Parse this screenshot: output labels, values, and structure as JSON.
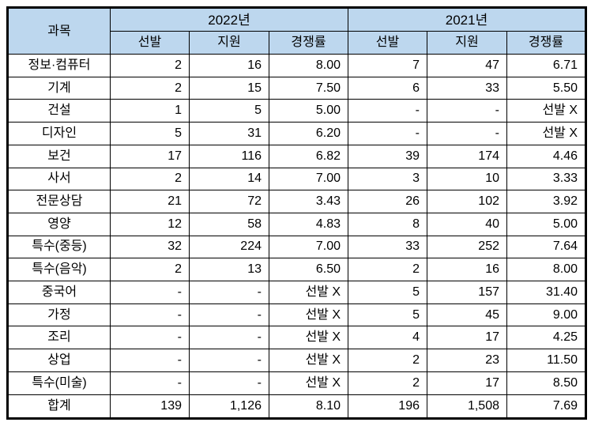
{
  "table": {
    "subject_header": "과목",
    "year_groups": [
      "2022년",
      "2021년"
    ],
    "sub_headers": [
      "선발",
      "지원",
      "경쟁률",
      "선발",
      "지원",
      "경쟁률"
    ],
    "no_selection_label": "선발 X",
    "empty_label": "-",
    "rows": [
      {
        "subject": "정보·컴퓨터",
        "values": [
          "2",
          "16",
          "8.00",
          "7",
          "47",
          "6.71"
        ]
      },
      {
        "subject": "기계",
        "values": [
          "2",
          "15",
          "7.50",
          "6",
          "33",
          "5.50"
        ]
      },
      {
        "subject": "건설",
        "values": [
          "1",
          "5",
          "5.00",
          "-",
          "-",
          "선발 X"
        ]
      },
      {
        "subject": "디자인",
        "values": [
          "5",
          "31",
          "6.20",
          "-",
          "-",
          "선발 X"
        ]
      },
      {
        "subject": "보건",
        "values": [
          "17",
          "116",
          "6.82",
          "39",
          "174",
          "4.46"
        ]
      },
      {
        "subject": "사서",
        "values": [
          "2",
          "14",
          "7.00",
          "3",
          "10",
          "3.33"
        ]
      },
      {
        "subject": "전문상담",
        "values": [
          "21",
          "72",
          "3.43",
          "26",
          "102",
          "3.92"
        ]
      },
      {
        "subject": "영양",
        "values": [
          "12",
          "58",
          "4.83",
          "8",
          "40",
          "5.00"
        ]
      },
      {
        "subject": "특수(중등)",
        "values": [
          "32",
          "224",
          "7.00",
          "33",
          "252",
          "7.64"
        ]
      },
      {
        "subject": "특수(음악)",
        "values": [
          "2",
          "13",
          "6.50",
          "2",
          "16",
          "8.00"
        ]
      },
      {
        "subject": "중국어",
        "values": [
          "-",
          "-",
          "선발 X",
          "5",
          "157",
          "31.40"
        ]
      },
      {
        "subject": "가정",
        "values": [
          "-",
          "-",
          "선발 X",
          "5",
          "45",
          "9.00"
        ]
      },
      {
        "subject": "조리",
        "values": [
          "-",
          "-",
          "선발 X",
          "4",
          "17",
          "4.25"
        ]
      },
      {
        "subject": "상업",
        "values": [
          "-",
          "-",
          "선발 X",
          "2",
          "23",
          "11.50"
        ]
      },
      {
        "subject": "특수(미술)",
        "values": [
          "-",
          "-",
          "선발 X",
          "2",
          "17",
          "8.50"
        ]
      },
      {
        "subject": "합계",
        "values": [
          "139",
          "1,126",
          "8.10",
          "196",
          "1,508",
          "7.69"
        ]
      }
    ]
  },
  "colors": {
    "header_bg": "#BDD7EE",
    "border": "#000000",
    "text": "#000000",
    "page_bg": "#FFFFFF"
  }
}
